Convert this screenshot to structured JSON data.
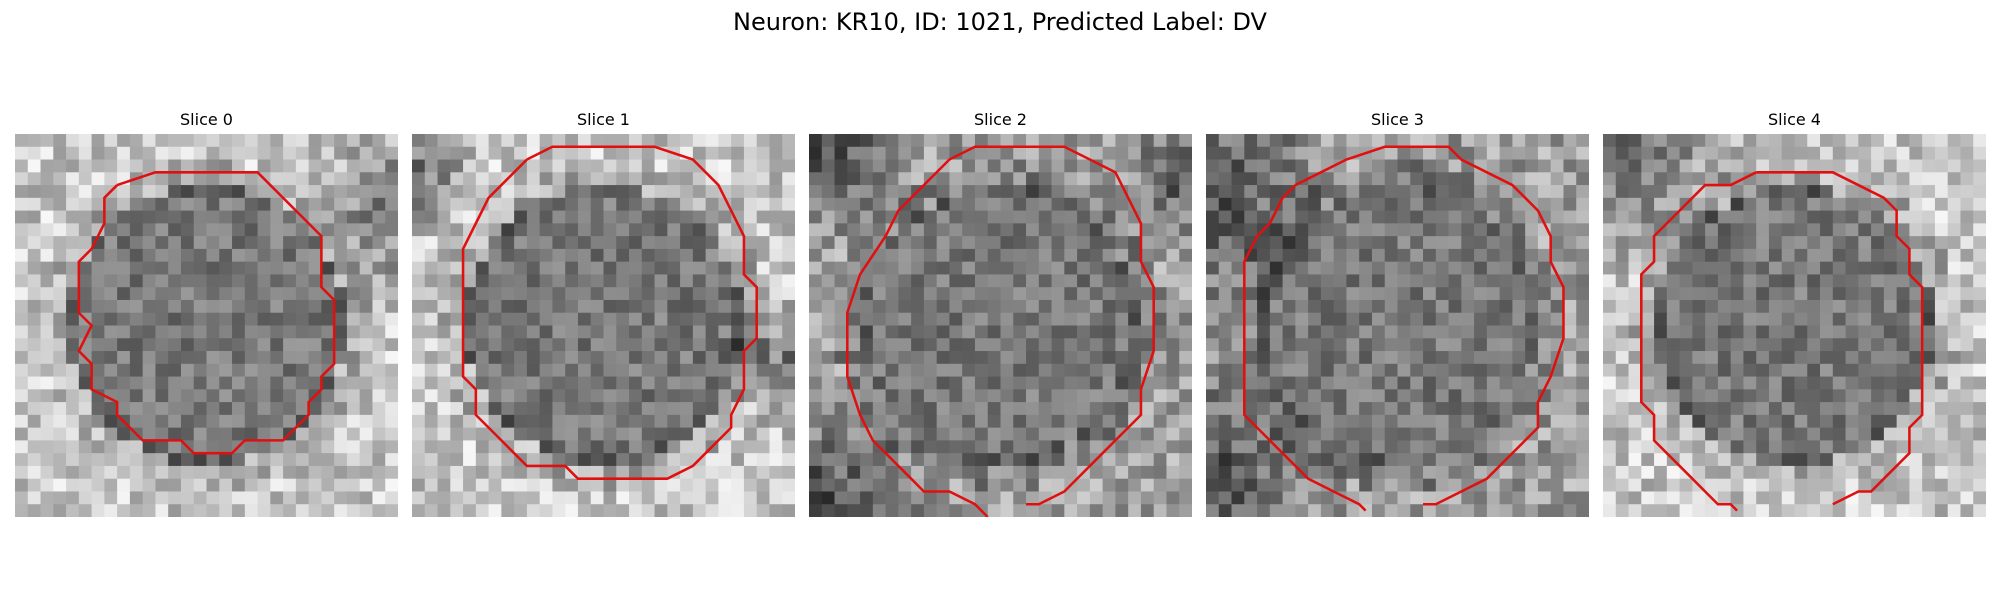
{
  "figure": {
    "title": "Neuron: KR10, ID: 1021, Predicted Label: DV"
  },
  "panels": [
    {
      "title": "Slice 0",
      "seed": 11,
      "bright_edges": true,
      "dark_corners": [
        [
          1.0,
          0.2,
          0.25
        ]
      ]
    },
    {
      "title": "Slice 1",
      "seed": 23,
      "bright_edges": true,
      "dark_corners": [
        [
          0.0,
          0.1,
          0.2
        ],
        [
          1.0,
          0.6,
          0.2
        ]
      ]
    },
    {
      "title": "Slice 2",
      "seed": 37,
      "bright_edges": false,
      "dark_corners": [
        [
          0.0,
          0.0,
          0.3
        ],
        [
          0.0,
          1.0,
          0.35
        ],
        [
          1.0,
          0.1,
          0.2
        ]
      ]
    },
    {
      "title": "Slice 3",
      "seed": 41,
      "bright_edges": false,
      "dark_corners": [
        [
          0.0,
          0.15,
          0.35
        ],
        [
          0.0,
          0.9,
          0.35
        ]
      ]
    },
    {
      "title": "Slice 4",
      "seed": 53,
      "bright_edges": true,
      "dark_corners": [
        [
          0.05,
          0.05,
          0.35
        ]
      ]
    }
  ],
  "style": {
    "contour_color": "#e01010"
  }
}
